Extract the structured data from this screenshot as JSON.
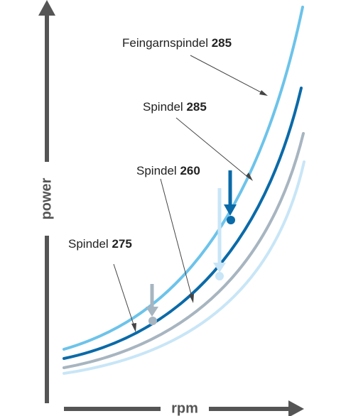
{
  "chart_data": {
    "type": "line",
    "xlabel": "rpm",
    "ylabel": "power",
    "grid": false,
    "legend": "callout labels with leader lines",
    "series": [
      {
        "name": "Feingarnspindel 285",
        "name_prefix": "Feingarnspindel ",
        "name_number": "285",
        "color": "#6cc3ea"
      },
      {
        "name": "Spindel 285",
        "name_prefix": "Spindel ",
        "name_number": "285",
        "color": "#0a6aa8"
      },
      {
        "name": "Spindel 260",
        "name_prefix": "Spindel ",
        "name_number": "260",
        "color": "#a7b5c0"
      },
      {
        "name": "Spindel 275",
        "name_prefix": "Spindel ",
        "name_number": "275",
        "color": "#c8e6f7"
      }
    ],
    "axis_color": "#555555"
  }
}
